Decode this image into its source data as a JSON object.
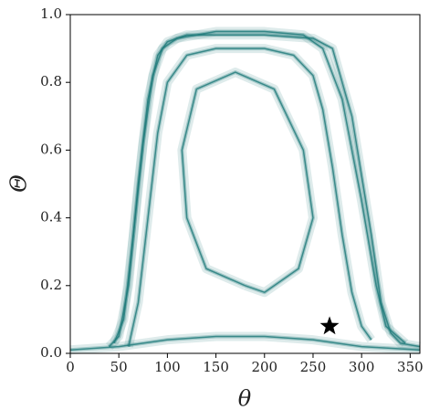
{
  "chart_data": {
    "type": "line",
    "x_label": "θ",
    "y_label": "Θ",
    "xlim": [
      0,
      360
    ],
    "ylim": [
      0,
      1
    ],
    "xticks": [
      0,
      50,
      100,
      150,
      200,
      250,
      300,
      350
    ],
    "yticks": [
      {
        "value": 0,
        "label": "0.0"
      },
      0.2,
      0.4,
      0.6,
      0.8,
      {
        "value": 1,
        "label": "1.0"
      }
    ],
    "series": [
      {
        "color": "#1f7a7a",
        "x": [
          40,
          50,
          60,
          70,
          80,
          90,
          100,
          120,
          150,
          200,
          250,
          270,
          290,
          310,
          320,
          330,
          340,
          360
        ],
        "values": [
          0.02,
          0.05,
          0.2,
          0.5,
          0.75,
          0.88,
          0.92,
          0.94,
          0.94,
          0.94,
          0.93,
          0.9,
          0.7,
          0.35,
          0.15,
          0.06,
          0.03,
          0.02
        ]
      },
      {
        "color": "#1f7a7a",
        "x": [
          45,
          55,
          65,
          75,
          85,
          95,
          110,
          150,
          200,
          240,
          260,
          280,
          300,
          315,
          325,
          345
        ],
        "values": [
          0.03,
          0.1,
          0.35,
          0.62,
          0.82,
          0.9,
          0.93,
          0.95,
          0.95,
          0.94,
          0.9,
          0.75,
          0.45,
          0.2,
          0.08,
          0.03
        ]
      },
      {
        "color": "#1f7a7a",
        "x": [
          60,
          70,
          80,
          90,
          100,
          120,
          150,
          200,
          230,
          250,
          260,
          270,
          280,
          290,
          300,
          310
        ],
        "values": [
          0.02,
          0.15,
          0.4,
          0.65,
          0.8,
          0.88,
          0.9,
          0.9,
          0.88,
          0.82,
          0.72,
          0.55,
          0.35,
          0.18,
          0.08,
          0.04
        ]
      },
      {
        "color": "#1f7a7a",
        "x": [
          0,
          50,
          100,
          150,
          200,
          250,
          300,
          360
        ],
        "values": [
          0.01,
          0.02,
          0.04,
          0.05,
          0.05,
          0.04,
          0.02,
          0.01
        ]
      },
      {
        "color": "#1f7a7a",
        "x": [
          180,
          140,
          120,
          115,
          130,
          170,
          210,
          240,
          250,
          235,
          200,
          180
        ],
        "values": [
          0.2,
          0.25,
          0.4,
          0.6,
          0.78,
          0.83,
          0.78,
          0.6,
          0.4,
          0.25,
          0.18,
          0.2
        ]
      }
    ],
    "marker": {
      "x": 267,
      "y": 0.08,
      "color": "#000000"
    }
  }
}
